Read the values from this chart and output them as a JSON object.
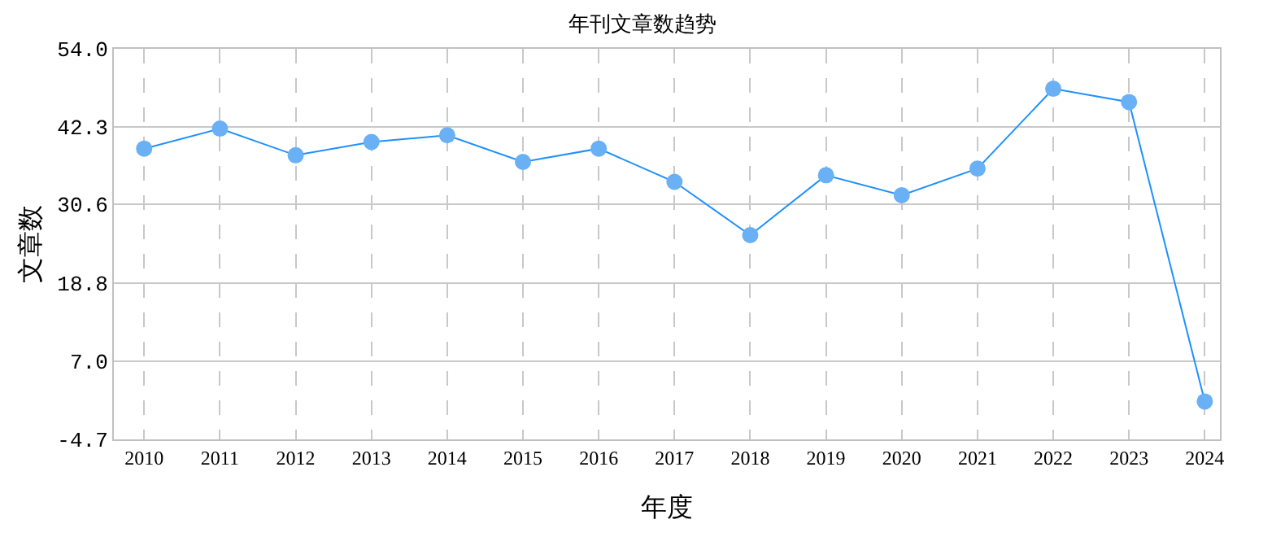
{
  "chart_data": {
    "type": "line",
    "title": "年刊文章数趋势",
    "xlabel": "年度",
    "ylabel": "文章数",
    "categories": [
      "2010",
      "2011",
      "2012",
      "2013",
      "2014",
      "2015",
      "2016",
      "2017",
      "2018",
      "2019",
      "2020",
      "2021",
      "2022",
      "2023",
      "2024"
    ],
    "series": [
      {
        "color": "#1e90ff",
        "values": [
          39,
          42,
          38,
          40,
          41,
          37,
          39,
          34,
          26,
          35,
          32,
          36,
          48,
          46,
          1
        ]
      }
    ],
    "ylim": [
      -4.7,
      54.0
    ],
    "yticks": [
      {
        "value": -4.7,
        "label": "-4.7"
      },
      {
        "value": 7.0,
        "label": "7.0"
      },
      {
        "value": 18.8,
        "label": "18.8"
      },
      {
        "value": 30.6,
        "label": "30.6"
      },
      {
        "value": 42.3,
        "label": "42.3"
      },
      {
        "value": 54.0,
        "label": "54.0"
      }
    ],
    "grid": true,
    "marker": "circle",
    "line_style": "solid"
  }
}
